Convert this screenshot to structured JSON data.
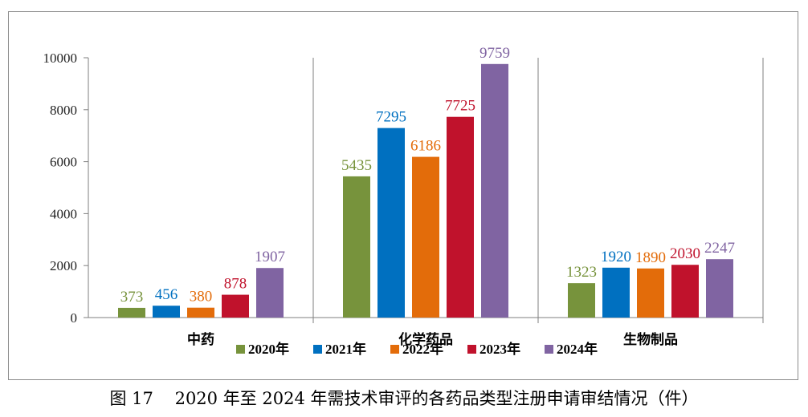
{
  "caption": "图 17    2020 年至 2024 年需技术审评的各药品类型注册申请审结情况（件）",
  "chart_data": {
    "type": "bar",
    "categories": [
      "中药",
      "化学药品",
      "生物制品"
    ],
    "series": [
      {
        "name": "2020年",
        "color": "#77933c",
        "values": [
          373,
          5435,
          1323
        ]
      },
      {
        "name": "2021年",
        "color": "#0070c0",
        "values": [
          456,
          7295,
          1920
        ]
      },
      {
        "name": "2022年",
        "color": "#e36c0a",
        "values": [
          380,
          6186,
          1890
        ]
      },
      {
        "name": "2023年",
        "color": "#c0122c",
        "values": [
          878,
          7725,
          2030
        ]
      },
      {
        "name": "2024年",
        "color": "#8064a2",
        "values": [
          1907,
          9759,
          2247
        ]
      }
    ],
    "ylim": [
      0,
      10000
    ],
    "yticks": [
      0,
      2000,
      4000,
      6000,
      8000,
      10000
    ],
    "legend_position": "bottom",
    "grid": false
  }
}
